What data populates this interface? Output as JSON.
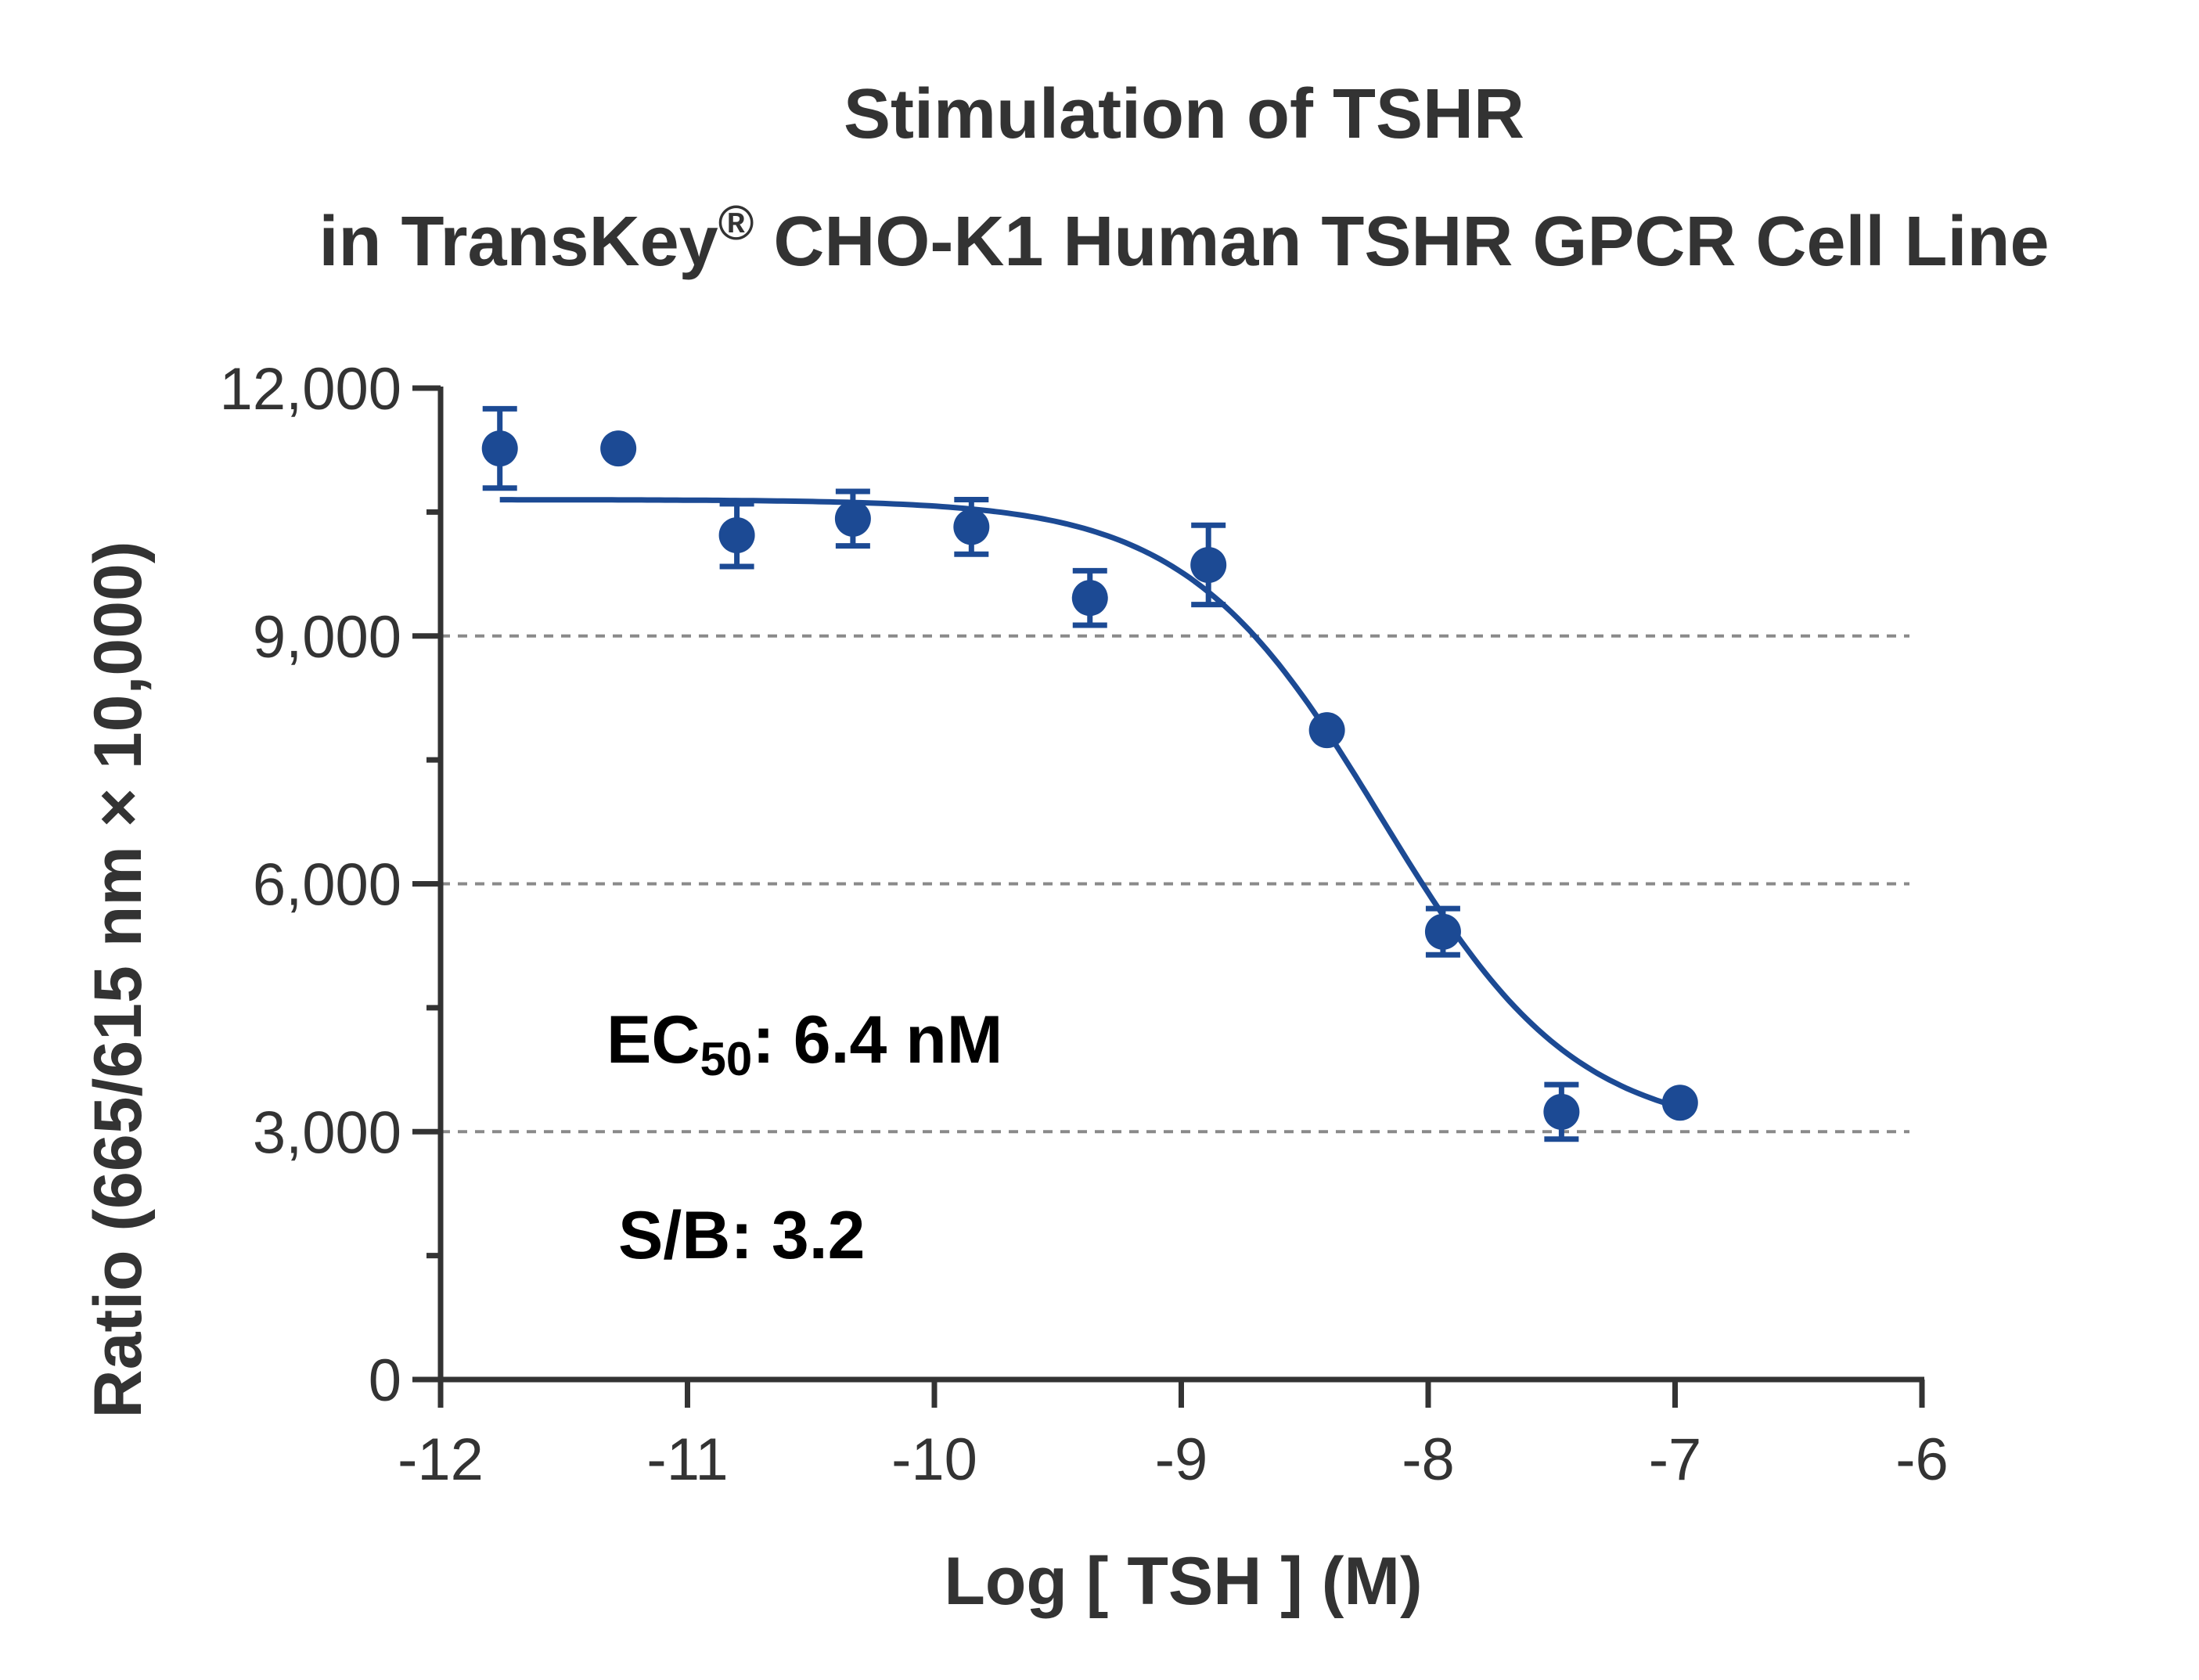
{
  "chart_data": {
    "type": "scatter",
    "title_line1": "Stimulation of  TSHR",
    "title_line2_prefix": "in TransKey",
    "title_line2_reg": "®",
    "title_line2_suffix": " CHO-K1 Human TSHR GPCR Cell Line",
    "xlabel": "Log [ TSH ]  (M)",
    "ylabel": "Ratio (665/615 nm × 10,000)",
    "xlim": [
      -12,
      -6
    ],
    "ylim": [
      0,
      12000
    ],
    "x_ticks": [
      -12,
      -11,
      -10,
      -9,
      -8,
      -7,
      -6
    ],
    "x_tick_labels": [
      "-12",
      "-11",
      "-10",
      "-9",
      "-8",
      "-7",
      "-6"
    ],
    "y_ticks": [
      0,
      3000,
      6000,
      9000,
      12000
    ],
    "y_tick_labels": [
      "0",
      "3,000",
      "6,000",
      "9,000",
      "12,000"
    ],
    "y_minor_ticks": [
      1500,
      4500,
      7500,
      10500
    ],
    "gridlines_y": [
      3000,
      6000,
      9000
    ],
    "series": [
      {
        "color": "#1c4a94",
        "points": [
          {
            "x": -11.76,
            "y": 11270,
            "err": 480
          },
          {
            "x": -11.28,
            "y": 11270,
            "err": 0
          },
          {
            "x": -10.8,
            "y": 10220,
            "err": 380
          },
          {
            "x": -10.33,
            "y": 10420,
            "err": 330
          },
          {
            "x": -9.85,
            "y": 10320,
            "err": 330
          },
          {
            "x": -9.37,
            "y": 9460,
            "err": 330
          },
          {
            "x": -8.89,
            "y": 9860,
            "err": 480
          },
          {
            "x": -8.41,
            "y": 7860,
            "err": 0
          },
          {
            "x": -7.94,
            "y": 5420,
            "err": 280
          },
          {
            "x": -7.46,
            "y": 3240,
            "err": 330
          },
          {
            "x": -6.98,
            "y": 3350,
            "err": 0
          }
        ],
        "fit": {
          "type": "4PL",
          "top": 10650,
          "bottom": 2950,
          "log_ec50": -8.19,
          "hill": 1.1,
          "x_start": -11.76,
          "x_end": -6.98
        }
      }
    ],
    "annotations": {
      "ec50_prefix": "EC",
      "ec50_sub": "50",
      "ec50_value": ": 6.4 nM",
      "sb": "S/B: 3.2"
    }
  }
}
